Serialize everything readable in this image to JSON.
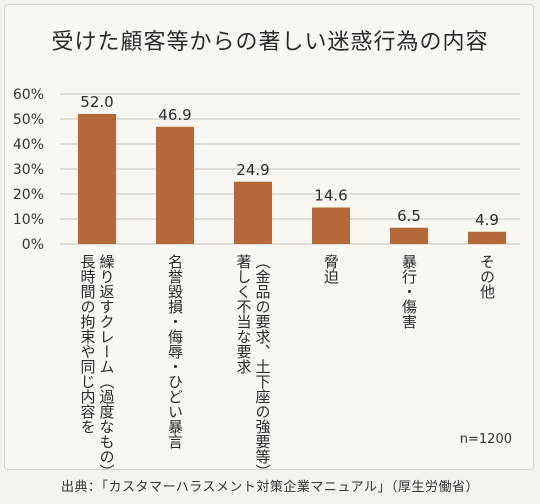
{
  "chart_data": {
    "type": "bar",
    "title": "受けた顧客等からの著しい迷惑行為の内容",
    "categories": [
      "長時間の拘束や同じ内容を繰り返すクレーム（過度なもの）",
      "名誉毀損・侮辱・ひどい暴言",
      "著しく不当な要求（金品の要求、土下座の強要等）",
      "脅迫",
      "暴行・傷害",
      "その他"
    ],
    "category_lines": [
      [
        "長時間の拘束や同じ内容を",
        "繰り返すクレーム（過度なもの）"
      ],
      [
        "名誉毀損・侮辱・ひどい暴言"
      ],
      [
        "著しく不当な要求",
        "（金品の要求、土下座の強要等）"
      ],
      [
        "脅迫"
      ],
      [
        "暴行・傷害"
      ],
      [
        "その他"
      ]
    ],
    "values": [
      52.0,
      46.9,
      24.9,
      14.6,
      6.5,
      4.9
    ],
    "value_labels": [
      "52.0",
      "46.9",
      "24.9",
      "14.6",
      "6.5",
      "4.9"
    ],
    "ylim": [
      0,
      60
    ],
    "yticks": [
      "0%",
      "10%",
      "20%",
      "30%",
      "40%",
      "50%",
      "60%"
    ],
    "grid": true,
    "bar_color": "#b5683a"
  },
  "note": "n=1200",
  "source": "出典：「カスタマーハラスメント対策企業マニュアル」（厚生労働省）"
}
